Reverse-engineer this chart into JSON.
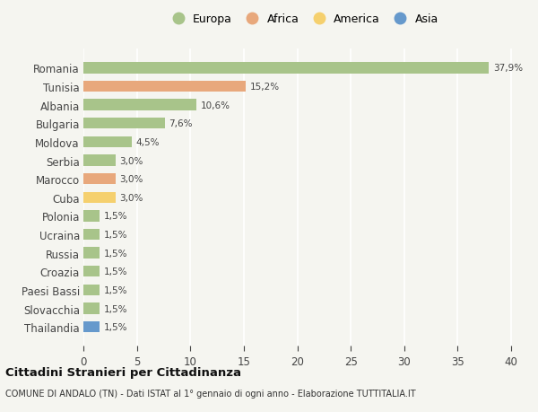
{
  "countries": [
    "Romania",
    "Tunisia",
    "Albania",
    "Bulgaria",
    "Moldova",
    "Serbia",
    "Marocco",
    "Cuba",
    "Polonia",
    "Ucraina",
    "Russia",
    "Croazia",
    "Paesi Bassi",
    "Slovacchia",
    "Thailandia"
  ],
  "values": [
    37.9,
    15.2,
    10.6,
    7.6,
    4.5,
    3.0,
    3.0,
    3.0,
    1.5,
    1.5,
    1.5,
    1.5,
    1.5,
    1.5,
    1.5
  ],
  "labels": [
    "37,9%",
    "15,2%",
    "10,6%",
    "7,6%",
    "4,5%",
    "3,0%",
    "3,0%",
    "3,0%",
    "1,5%",
    "1,5%",
    "1,5%",
    "1,5%",
    "1,5%",
    "1,5%",
    "1,5%"
  ],
  "continents": [
    "Europa",
    "Africa",
    "Europa",
    "Europa",
    "Europa",
    "Europa",
    "Africa",
    "America",
    "Europa",
    "Europa",
    "Europa",
    "Europa",
    "Europa",
    "Europa",
    "Asia"
  ],
  "colors": {
    "Europa": "#a8c48a",
    "Africa": "#e8a87c",
    "America": "#f5d06e",
    "Asia": "#6699cc"
  },
  "legend_order": [
    "Europa",
    "Africa",
    "America",
    "Asia"
  ],
  "bg_color": "#f5f5f0",
  "grid_color": "#ffffff",
  "title": "Cittadini Stranieri per Cittadinanza",
  "subtitle": "COMUNE DI ANDALO (TN) - Dati ISTAT al 1° gennaio di ogni anno - Elaborazione TUTTITALIA.IT",
  "xlim": [
    0,
    41
  ],
  "xticks": [
    0,
    5,
    10,
    15,
    20,
    25,
    30,
    35,
    40
  ]
}
